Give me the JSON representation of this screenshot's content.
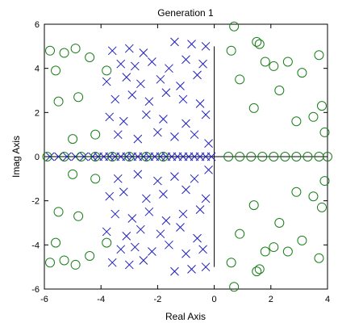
{
  "chart_data": {
    "type": "scatter",
    "title": "Generation 1",
    "xlabel": "Real Axis",
    "ylabel": "Imag Axis",
    "xlim": [
      -6,
      4
    ],
    "ylim": [
      -6,
      6
    ],
    "xticks": [
      "-6",
      "-4",
      "-2",
      "0",
      "2",
      "4"
    ],
    "yticks": [
      "6",
      "4",
      "2",
      "0",
      "-2",
      "-4",
      "-6"
    ],
    "grid": false,
    "legend": "none",
    "colors": {
      "poles": "#1f1fbf",
      "zeros": "#1a7f1a",
      "axes": "#000000"
    },
    "series": [
      {
        "marker": "x",
        "points": [
          [
            -3.9,
            0.0
          ],
          [
            -3.5,
            0.0
          ],
          [
            -3.1,
            0.0
          ],
          [
            -2.7,
            0.0
          ],
          [
            -2.3,
            0.0
          ],
          [
            -1.9,
            0.0
          ],
          [
            -1.5,
            0.0
          ],
          [
            -1.1,
            0.0
          ],
          [
            -0.7,
            0.0
          ],
          [
            -0.3,
            0.0
          ],
          [
            -5.8,
            0.0
          ],
          [
            -5.5,
            0.0
          ],
          [
            -5.2,
            0.0
          ],
          [
            -4.9,
            0.0
          ],
          [
            -4.6,
            0.0
          ],
          [
            -4.3,
            0.0
          ],
          [
            -4.1,
            0.0
          ],
          [
            -3.7,
            0.0
          ],
          [
            -3.3,
            0.0
          ],
          [
            -2.9,
            0.0
          ],
          [
            -2.5,
            0.0
          ],
          [
            -2.1,
            0.0
          ],
          [
            -1.7,
            0.0
          ],
          [
            -1.3,
            0.0
          ],
          [
            -0.9,
            0.0
          ],
          [
            -0.5,
            0.0
          ],
          [
            -0.1,
            0.0
          ],
          [
            -3.6,
            4.8
          ],
          [
            -3.0,
            4.9
          ],
          [
            -2.5,
            4.7
          ],
          [
            -1.4,
            5.2
          ],
          [
            -0.8,
            5.1
          ],
          [
            -0.3,
            5.0
          ],
          [
            -3.3,
            4.2
          ],
          [
            -2.8,
            4.1
          ],
          [
            -2.2,
            4.3
          ],
          [
            -1.6,
            4.0
          ],
          [
            -1.0,
            4.4
          ],
          [
            -0.4,
            4.2
          ],
          [
            -3.8,
            3.4
          ],
          [
            -3.1,
            3.6
          ],
          [
            -2.6,
            3.3
          ],
          [
            -1.9,
            3.5
          ],
          [
            -1.2,
            3.2
          ],
          [
            -0.6,
            3.7
          ],
          [
            -3.5,
            2.6
          ],
          [
            -2.9,
            2.8
          ],
          [
            -2.3,
            2.5
          ],
          [
            -1.7,
            2.9
          ],
          [
            -1.1,
            2.6
          ],
          [
            -0.5,
            2.4
          ],
          [
            -3.7,
            1.8
          ],
          [
            -3.2,
            1.6
          ],
          [
            -2.4,
            1.9
          ],
          [
            -1.8,
            1.7
          ],
          [
            -1.0,
            1.5
          ],
          [
            -0.3,
            1.9
          ],
          [
            -3.4,
            1.0
          ],
          [
            -2.7,
            0.8
          ],
          [
            -2.0,
            1.1
          ],
          [
            -1.4,
            0.9
          ],
          [
            -0.7,
            1.0
          ],
          [
            -0.2,
            0.6
          ],
          [
            -3.6,
            -4.8
          ],
          [
            -3.0,
            -4.9
          ],
          [
            -2.5,
            -4.7
          ],
          [
            -1.4,
            -5.2
          ],
          [
            -0.8,
            -5.1
          ],
          [
            -0.3,
            -5.0
          ],
          [
            -3.3,
            -4.2
          ],
          [
            -2.8,
            -4.1
          ],
          [
            -2.2,
            -4.3
          ],
          [
            -1.6,
            -4.0
          ],
          [
            -1.0,
            -4.4
          ],
          [
            -0.4,
            -4.2
          ],
          [
            -3.8,
            -3.4
          ],
          [
            -3.1,
            -3.6
          ],
          [
            -2.6,
            -3.3
          ],
          [
            -1.9,
            -3.5
          ],
          [
            -1.2,
            -3.2
          ],
          [
            -0.6,
            -3.7
          ],
          [
            -3.5,
            -2.6
          ],
          [
            -2.9,
            -2.8
          ],
          [
            -2.3,
            -2.5
          ],
          [
            -1.7,
            -2.9
          ],
          [
            -1.1,
            -2.6
          ],
          [
            -0.5,
            -2.4
          ],
          [
            -3.7,
            -1.8
          ],
          [
            -3.2,
            -1.6
          ],
          [
            -2.4,
            -1.9
          ],
          [
            -1.8,
            -1.7
          ],
          [
            -1.0,
            -1.5
          ],
          [
            -0.3,
            -1.9
          ],
          [
            -3.4,
            -1.0
          ],
          [
            -2.7,
            -0.8
          ],
          [
            -2.0,
            -1.1
          ],
          [
            -1.4,
            -0.9
          ],
          [
            -0.7,
            -1.0
          ],
          [
            -0.2,
            -0.6
          ]
        ]
      },
      {
        "marker": "o",
        "points": [
          [
            0.5,
            0.0
          ],
          [
            0.9,
            0.0
          ],
          [
            1.3,
            0.0
          ],
          [
            1.7,
            0.0
          ],
          [
            2.1,
            0.0
          ],
          [
            2.5,
            0.0
          ],
          [
            2.9,
            0.0
          ],
          [
            3.3,
            0.0
          ],
          [
            3.7,
            0.0
          ],
          [
            4.0,
            0.0
          ],
          [
            -5.9,
            0.0
          ],
          [
            -5.3,
            0.0
          ],
          [
            -4.7,
            0.0
          ],
          [
            -4.2,
            0.0
          ],
          [
            -3.6,
            0.0
          ],
          [
            -3.0,
            0.0
          ],
          [
            -2.4,
            0.0
          ],
          [
            -1.8,
            0.0
          ],
          [
            0.7,
            5.9
          ],
          [
            1.5,
            5.2
          ],
          [
            1.6,
            5.1
          ],
          [
            2.1,
            4.1
          ],
          [
            2.3,
            3.0
          ],
          [
            1.4,
            2.2
          ],
          [
            0.9,
            3.5
          ],
          [
            2.6,
            4.3
          ],
          [
            3.1,
            3.8
          ],
          [
            3.8,
            2.3
          ],
          [
            3.7,
            4.6
          ],
          [
            3.9,
            1.1
          ],
          [
            0.6,
            4.8
          ],
          [
            1.8,
            4.3
          ],
          [
            2.9,
            1.6
          ],
          [
            3.5,
            1.8
          ],
          [
            0.7,
            -5.9
          ],
          [
            1.5,
            -5.2
          ],
          [
            1.6,
            -5.1
          ],
          [
            2.1,
            -4.1
          ],
          [
            2.3,
            -3.0
          ],
          [
            1.4,
            -2.2
          ],
          [
            0.9,
            -3.5
          ],
          [
            2.6,
            -4.3
          ],
          [
            3.1,
            -3.8
          ],
          [
            3.8,
            -2.3
          ],
          [
            3.7,
            -4.6
          ],
          [
            3.9,
            -1.1
          ],
          [
            0.6,
            -4.8
          ],
          [
            1.8,
            -4.3
          ],
          [
            2.9,
            -1.6
          ],
          [
            3.5,
            -1.8
          ],
          [
            -5.8,
            4.8
          ],
          [
            -5.3,
            4.7
          ],
          [
            -4.9,
            4.9
          ],
          [
            -5.6,
            3.9
          ],
          [
            -4.8,
            2.7
          ],
          [
            -4.2,
            1.0
          ],
          [
            -5.0,
            0.8
          ],
          [
            -4.4,
            4.5
          ],
          [
            -3.8,
            3.9
          ],
          [
            -5.5,
            2.5
          ],
          [
            -5.8,
            -4.8
          ],
          [
            -5.3,
            -4.7
          ],
          [
            -4.9,
            -4.9
          ],
          [
            -5.6,
            -3.9
          ],
          [
            -4.8,
            -2.7
          ],
          [
            -4.2,
            -1.0
          ],
          [
            -5.0,
            -0.8
          ],
          [
            -4.4,
            -4.5
          ],
          [
            -3.8,
            -3.9
          ],
          [
            -5.5,
            -2.5
          ]
        ]
      }
    ]
  }
}
